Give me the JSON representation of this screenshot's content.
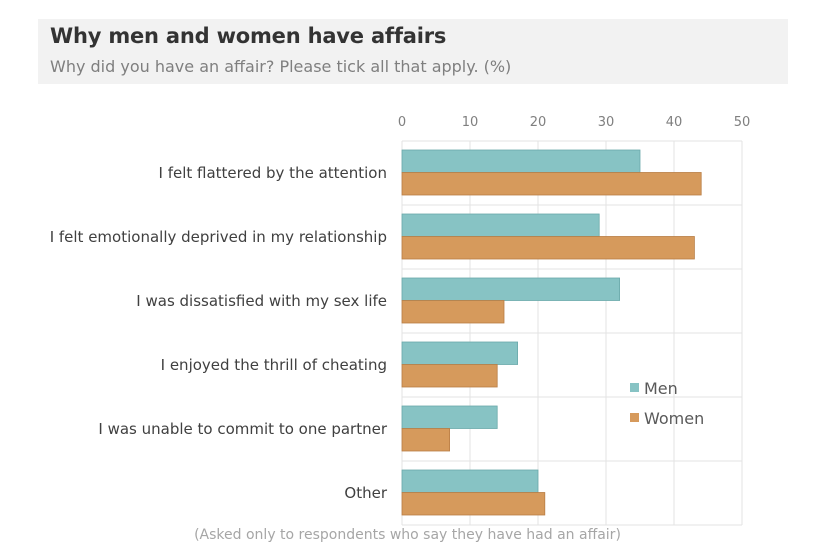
{
  "header": {
    "title": "Why men and women have affairs",
    "subtitle": "Why did you have an affair? Please tick all that apply. (%)"
  },
  "footnote": "(Asked only to respondents who say they have had an affair)",
  "colors": {
    "men": "#87c3c4",
    "women": "#d69a5c",
    "grid": "#e3e3e3"
  },
  "chart_data": {
    "type": "bar",
    "orientation": "horizontal",
    "categories": [
      "I felt flattered by the attention",
      "I felt emotionally deprived in my relationship",
      "I was dissatisfied with my sex life",
      "I enjoyed the thrill of cheating",
      "I was unable to commit to one partner",
      "Other"
    ],
    "series": [
      {
        "name": "Men",
        "values": [
          35,
          29,
          32,
          17,
          14,
          20
        ]
      },
      {
        "name": "Women",
        "values": [
          44,
          43,
          15,
          14,
          7,
          21
        ]
      }
    ],
    "xlim": [
      0,
      50
    ],
    "xticks": [
      0,
      10,
      20,
      30,
      40,
      50
    ],
    "axis_position": "top",
    "grid": true,
    "legend_position": "right"
  }
}
